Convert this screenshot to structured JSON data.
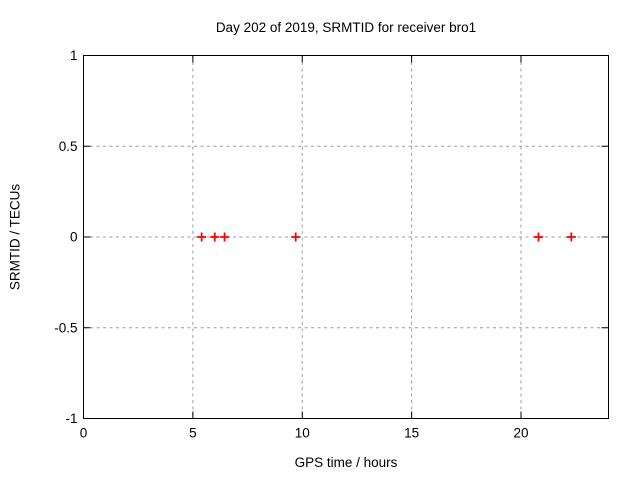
{
  "chart_data": {
    "type": "scatter",
    "title": "Day 202 of 2019, SRMTID for receiver bro1",
    "xlabel": "GPS time / hours",
    "ylabel": "SRMTID / TECUs",
    "xlim": [
      0,
      24
    ],
    "ylim": [
      -1,
      1
    ],
    "xticks": [
      0,
      5,
      10,
      15,
      20
    ],
    "xtick_labels": [
      "0",
      "5",
      "10",
      "15",
      "20"
    ],
    "yticks": [
      -1,
      -0.5,
      0,
      0.5,
      1
    ],
    "ytick_labels": [
      "-1",
      "-0.5",
      "0",
      "0.5",
      "1"
    ],
    "grid": true,
    "legend": "none",
    "marker": "plus",
    "colors": {
      "marker": "#ff0000",
      "grid": "#9e9e9e",
      "axis": "#000000",
      "background": "#ffffff"
    },
    "series": [
      {
        "name": "SRMTID",
        "x": [
          5.4,
          6.0,
          6.45,
          9.7,
          20.8,
          22.3
        ],
        "y": [
          0,
          0,
          0,
          0,
          0,
          0
        ]
      }
    ]
  }
}
